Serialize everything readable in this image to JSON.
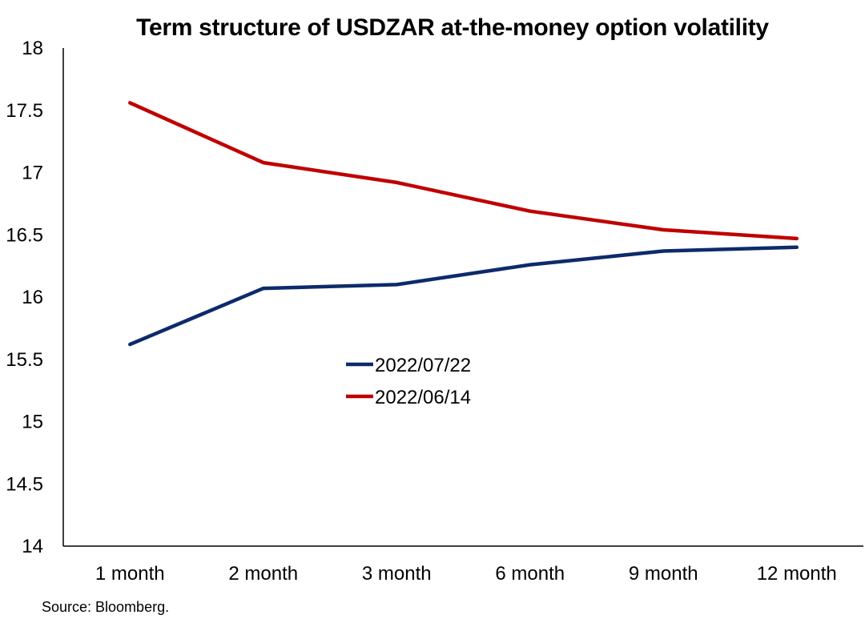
{
  "chart_data": {
    "type": "line",
    "title": "Term structure of USDZAR at-the-money option volatility",
    "categories": [
      "1 month",
      "2 month",
      "3 month",
      "6 month",
      "9 month",
      "12 month"
    ],
    "series": [
      {
        "name": "2022/07/22",
        "color": "#0d2a6b",
        "values": [
          15.62,
          16.07,
          16.1,
          16.26,
          16.37,
          16.4
        ]
      },
      {
        "name": "2022/06/14",
        "color": "#c00000",
        "values": [
          17.56,
          17.08,
          16.92,
          16.69,
          16.54,
          16.47
        ]
      }
    ],
    "ylim": [
      14,
      18
    ],
    "yticks": [
      "14",
      "14.5",
      "15",
      "15.5",
      "16",
      "16.5",
      "17",
      "17.5",
      "18"
    ],
    "xlabel": "",
    "ylabel": "",
    "grid": false,
    "legend_position": "center"
  },
  "source": "Source: Bloomberg."
}
